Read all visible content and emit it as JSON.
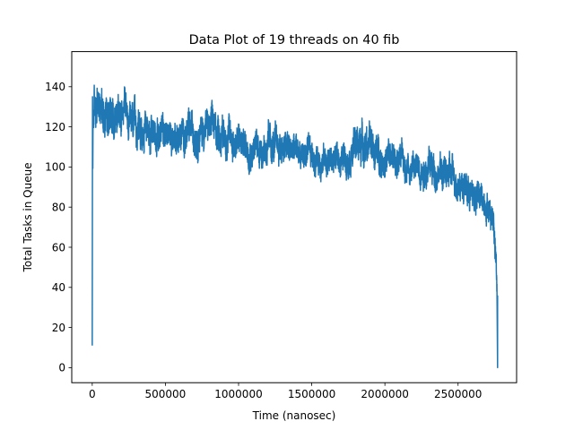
{
  "chart_data": {
    "type": "line",
    "title": "Data Plot of 19 threads on 40 fib",
    "xlabel": "Time (nanosec)",
    "ylabel": "Total Tasks in Queue",
    "xlim": [
      -140000,
      2900000
    ],
    "ylim": [
      -7.5,
      157.5
    ],
    "xticks": [
      0,
      500000,
      1000000,
      1500000,
      2000000,
      2500000
    ],
    "xtick_labels": [
      "0",
      "500000",
      "1000000",
      "1500000",
      "2000000",
      "2500000"
    ],
    "yticks": [
      0,
      20,
      40,
      60,
      80,
      100,
      120,
      140
    ],
    "ytick_labels": [
      "0",
      "20",
      "40",
      "60",
      "80",
      "100",
      "120",
      "140"
    ],
    "grid": false,
    "series": [
      {
        "color": "#1f77b4",
        "noisy": true,
        "trend_x": [
          0,
          5000,
          10000,
          30000,
          60000,
          100000,
          150000,
          200000,
          250000,
          300000,
          400000,
          500000,
          600000,
          700000,
          800000,
          900000,
          1000000,
          1100000,
          1200000,
          1300000,
          1400000,
          1500000,
          1600000,
          1700000,
          1800000,
          1850000,
          1900000,
          2000000,
          2100000,
          2200000,
          2300000,
          2400000,
          2500000,
          2550000,
          2600000,
          2650000,
          2700000,
          2720000,
          2740000,
          2750000,
          2760000,
          2765000,
          2770000
        ],
        "trend_y": [
          11,
          120,
          128,
          130,
          131,
          130,
          126,
          124,
          122,
          120,
          118,
          116,
          115,
          118,
          120,
          116,
          112,
          110,
          110,
          110,
          107,
          105,
          103,
          104,
          110,
          113,
          110,
          104,
          103,
          100,
          100,
          97,
          94,
          90,
          86,
          84,
          82,
          78,
          75,
          68,
          55,
          44,
          35
        ],
        "amplitude": [
          0,
          6,
          12,
          12,
          12,
          12,
          11,
          11,
          10,
          10,
          9,
          9,
          9,
          10,
          10,
          10,
          10,
          9,
          10,
          9,
          9,
          8,
          8,
          8,
          10,
          10,
          10,
          9,
          9,
          9,
          9,
          9,
          9,
          9,
          9,
          9,
          8,
          8,
          8,
          8,
          7,
          6,
          5
        ],
        "extremes": [
          {
            "x": 0,
            "y": 11
          },
          {
            "x": 2000,
            "y": 135
          },
          {
            "x": 25000,
            "y": 105
          },
          {
            "x": 40000,
            "y": 150
          },
          {
            "x": 2770000,
            "y": 0
          }
        ]
      }
    ]
  }
}
